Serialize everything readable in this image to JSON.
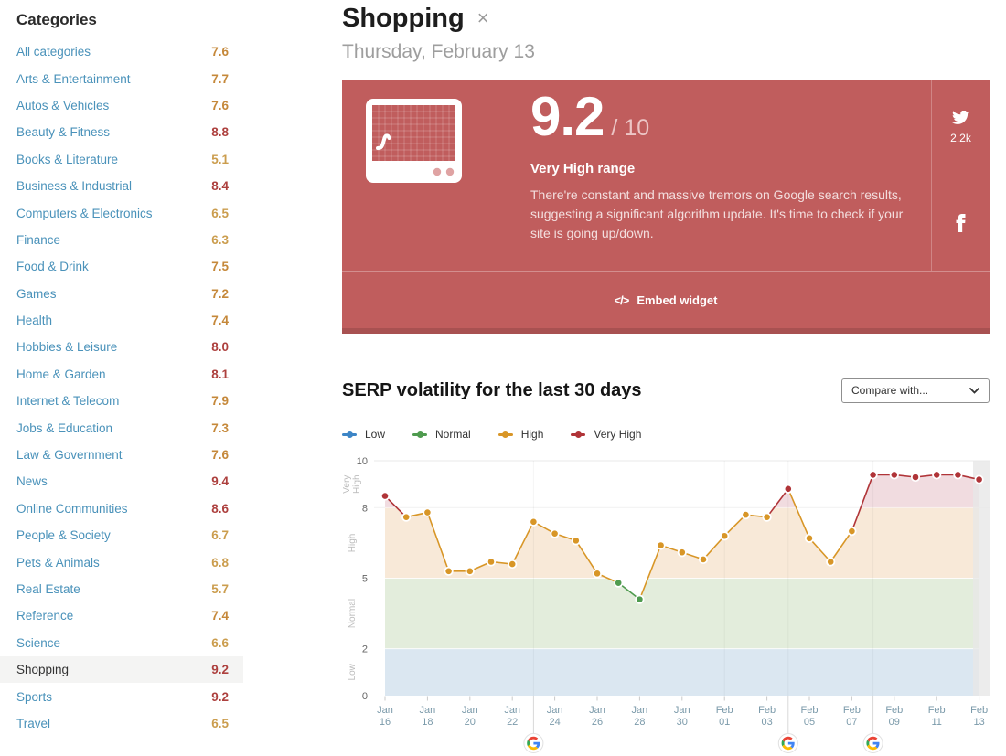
{
  "sidebar": {
    "title": "Categories",
    "selected": "Shopping",
    "score_colors": {
      "high": "#ad403e",
      "mid": "#c5883a",
      "low": "#cb9d4e"
    },
    "items": [
      {
        "label": "All categories",
        "score": "7.6"
      },
      {
        "label": "Arts & Entertainment",
        "score": "7.7"
      },
      {
        "label": "Autos & Vehicles",
        "score": "7.6"
      },
      {
        "label": "Beauty & Fitness",
        "score": "8.8"
      },
      {
        "label": "Books & Literature",
        "score": "5.1"
      },
      {
        "label": "Business & Industrial",
        "score": "8.4"
      },
      {
        "label": "Computers & Electronics",
        "score": "6.5"
      },
      {
        "label": "Finance",
        "score": "6.3"
      },
      {
        "label": "Food & Drink",
        "score": "7.5"
      },
      {
        "label": "Games",
        "score": "7.2"
      },
      {
        "label": "Health",
        "score": "7.4"
      },
      {
        "label": "Hobbies & Leisure",
        "score": "8.0"
      },
      {
        "label": "Home & Garden",
        "score": "8.1"
      },
      {
        "label": "Internet & Telecom",
        "score": "7.9"
      },
      {
        "label": "Jobs & Education",
        "score": "7.3"
      },
      {
        "label": "Law & Government",
        "score": "7.6"
      },
      {
        "label": "News",
        "score": "9.4"
      },
      {
        "label": "Online Communities",
        "score": "8.6"
      },
      {
        "label": "People & Society",
        "score": "6.7"
      },
      {
        "label": "Pets & Animals",
        "score": "6.8"
      },
      {
        "label": "Real Estate",
        "score": "5.7"
      },
      {
        "label": "Reference",
        "score": "7.4"
      },
      {
        "label": "Science",
        "score": "6.6"
      },
      {
        "label": "Shopping",
        "score": "9.2"
      },
      {
        "label": "Sports",
        "score": "9.2"
      },
      {
        "label": "Travel",
        "score": "6.5"
      }
    ]
  },
  "header": {
    "title": "Shopping",
    "close_icon": "×",
    "date": "Thursday, February 13"
  },
  "score_card": {
    "score": "9.2",
    "score_max": "/ 10",
    "range_label": "Very High range",
    "description": "There're constant and massive tremors on Google search results, suggesting a significant algorithm update. It's time to check if your site is going up/down.",
    "twitter_count": "2.2k",
    "embed_icon": "</>",
    "embed_label": "Embed widget",
    "bg_color": "#c05d5d"
  },
  "chart_section": {
    "heading": "SERP volatility for the last 30 days",
    "compare_dropdown": "Compare with...",
    "legend": [
      {
        "label": "Low",
        "color": "#3d85c6"
      },
      {
        "label": "Normal",
        "color": "#4f9b4f"
      },
      {
        "label": "High",
        "color": "#d89627"
      },
      {
        "label": "Very High",
        "color": "#b03438"
      }
    ]
  },
  "chart_data": {
    "type": "line",
    "title": "SERP volatility for the last 30 days",
    "x": [
      "Jan 16",
      "Jan 17",
      "Jan 18",
      "Jan 19",
      "Jan 20",
      "Jan 21",
      "Jan 22",
      "Jan 23",
      "Jan 24",
      "Jan 25",
      "Jan 26",
      "Jan 27",
      "Jan 28",
      "Jan 29",
      "Jan 30",
      "Jan 31",
      "Feb 01",
      "Feb 02",
      "Feb 03",
      "Feb 04",
      "Feb 05",
      "Feb 06",
      "Feb 07",
      "Feb 08",
      "Feb 09",
      "Feb 10",
      "Feb 11",
      "Feb 12",
      "Feb 13"
    ],
    "values": [
      8.5,
      7.6,
      7.8,
      5.3,
      5.3,
      5.7,
      5.6,
      7.4,
      6.9,
      6.6,
      5.2,
      4.8,
      4.1,
      6.4,
      6.1,
      5.8,
      6.8,
      7.7,
      7.6,
      8.8,
      6.7,
      5.7,
      7.0,
      9.4,
      9.4,
      9.3,
      9.4,
      9.4,
      9.2
    ],
    "ylim": [
      0,
      10
    ],
    "yticks": [
      0,
      2,
      5,
      8,
      10
    ],
    "x_tick_every": 2,
    "axis_label_color": "#7b9aaa",
    "zones": [
      {
        "label": "Low",
        "min": 0,
        "max": 2,
        "band": "#dbe7f1",
        "point": "#3d85c6"
      },
      {
        "label": "Normal",
        "min": 2,
        "max": 5,
        "band": "#e3eddc",
        "point": "#4f9b4f"
      },
      {
        "label": "High",
        "min": 5,
        "max": 8,
        "band": "#f8e9d8",
        "point": "#d89627"
      },
      {
        "label": "Very High",
        "min": 8,
        "max": 10,
        "band": "#f1dce0",
        "point": "#b03438"
      }
    ],
    "google_updates": [
      "Jan 23",
      "Feb 04",
      "Feb 08"
    ],
    "vertical_gridlines": [
      "Feb 01"
    ],
    "today_highlight": "Feb 13"
  }
}
